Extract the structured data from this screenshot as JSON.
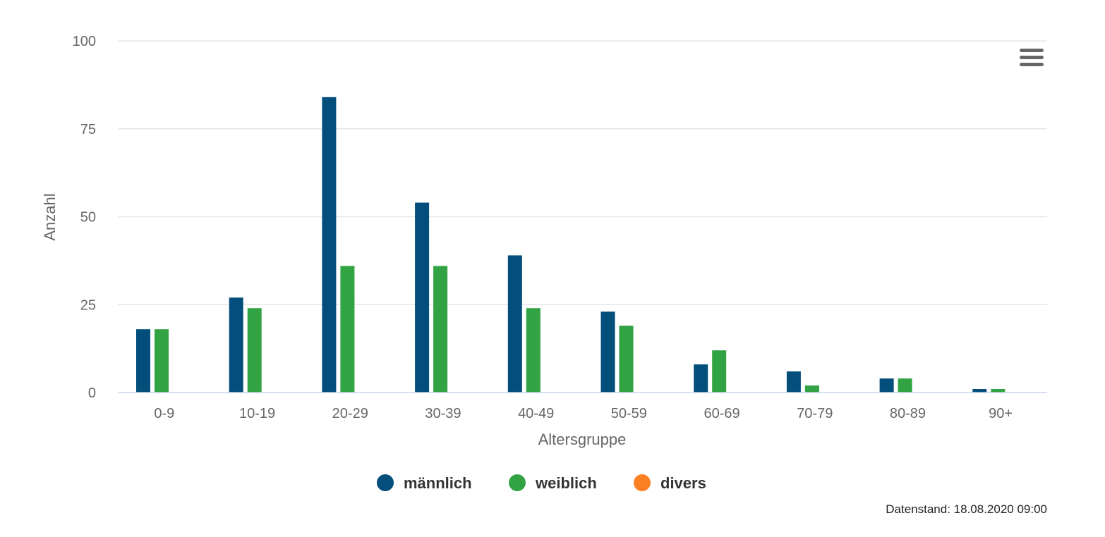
{
  "chart_data": {
    "type": "bar",
    "xlabel": "Altersgruppe",
    "ylabel": "Anzahl",
    "ylim": [
      0,
      100
    ],
    "yticks": [
      0,
      25,
      50,
      75,
      100
    ],
    "grid": true,
    "legend_position": "bottom-center",
    "categories": [
      "0-9",
      "10-19",
      "20-29",
      "30-39",
      "40-49",
      "50-59",
      "60-69",
      "70-79",
      "80-89",
      "90+"
    ],
    "series": [
      {
        "name": "männlich",
        "color": "#034e7b",
        "values": [
          18,
          27,
          84,
          54,
          39,
          23,
          8,
          6,
          4,
          1
        ]
      },
      {
        "name": "weiblich",
        "color": "#31a343",
        "values": [
          18,
          24,
          36,
          36,
          24,
          19,
          12,
          2,
          4,
          1
        ]
      },
      {
        "name": "divers",
        "color": "#fd7f23",
        "values": [
          0,
          0,
          0,
          0,
          0,
          0,
          0,
          0,
          0,
          0
        ]
      }
    ]
  },
  "footer": {
    "credit": "Datenstand: 18.08.2020 09:00"
  },
  "menu": {
    "icon": "hamburger-menu-icon"
  }
}
